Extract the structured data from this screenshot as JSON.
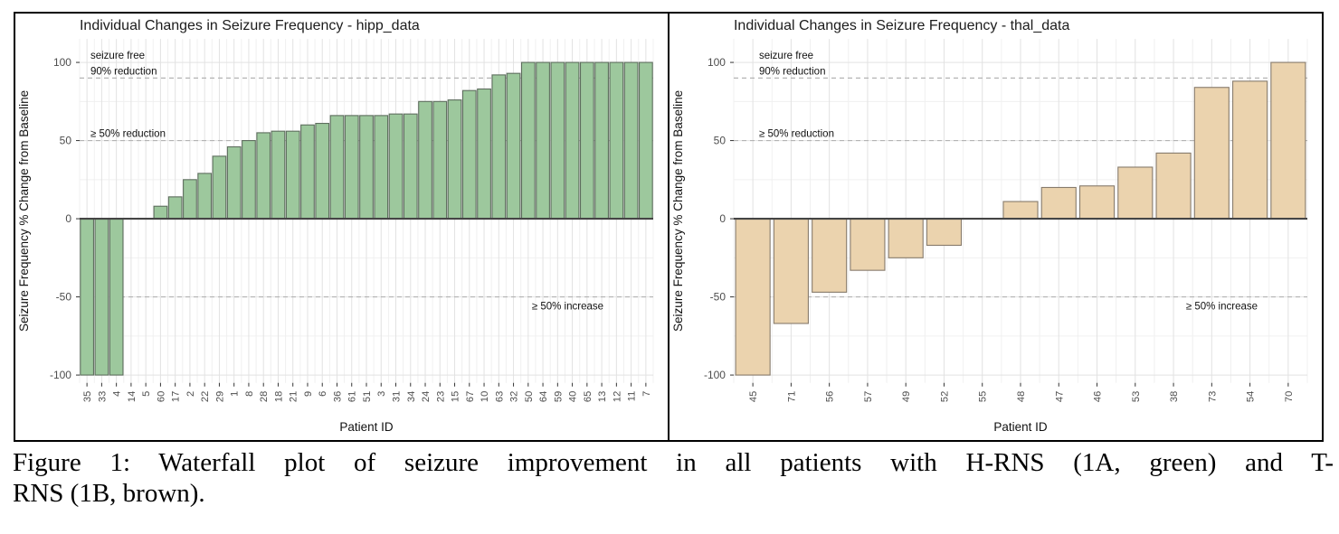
{
  "figure": {
    "caption_line1": "Figure 1: Waterfall plot of seizure improvement in all patients with H-RNS (1A, green) and T-",
    "caption_line2": "RNS (1B, brown)."
  },
  "chart_data": [
    {
      "id": "1A",
      "type": "bar",
      "title": "Individual Changes in Seizure Frequency - hipp_data",
      "xlabel": "Patient ID",
      "ylabel": "Seizure Frequency % Change from Baseline",
      "ylim": [
        -105,
        115
      ],
      "yticks": [
        100,
        50,
        0,
        -50,
        -100
      ],
      "grid": true,
      "legend": "none",
      "bar_fill": "#9dc89d",
      "bar_stroke": "#5e6e5e",
      "ann_x_offset": 12,
      "categories": [
        "35",
        "33",
        "4",
        "14",
        "5",
        "60",
        "17",
        "2",
        "22",
        "29",
        "1",
        "8",
        "28",
        "18",
        "21",
        "9",
        "6",
        "36",
        "61",
        "51",
        "3",
        "31",
        "34",
        "24",
        "23",
        "15",
        "67",
        "10",
        "63",
        "32",
        "50",
        "64",
        "59",
        "40",
        "65",
        "13",
        "12",
        "11",
        "7"
      ],
      "values": [
        -100,
        -100,
        -100,
        0,
        0,
        8,
        14,
        25,
        29,
        40,
        46,
        50,
        55,
        56,
        56,
        60,
        61,
        66,
        66,
        66,
        66,
        67,
        67,
        75,
        75,
        76,
        82,
        83,
        92,
        93,
        100,
        100,
        100,
        100,
        100,
        100,
        100,
        100,
        100
      ],
      "annotations": [
        {
          "label": "seizure free",
          "y": 100,
          "align": "left",
          "line": "none",
          "dy": -4
        },
        {
          "label": "90% reduction",
          "y": 90,
          "align": "left",
          "line": "dashed",
          "dy": -4
        },
        {
          "label": "≥ 50% reduction",
          "y": 50,
          "align": "left",
          "line": "dashed",
          "dy": -4
        },
        {
          "label": "≥ 50% increase",
          "y": -50,
          "align": "right",
          "line": "dashed",
          "dy": 14
        }
      ]
    },
    {
      "id": "1B",
      "type": "bar",
      "title": "Individual Changes in Seizure Frequency - thal_data",
      "xlabel": "Patient ID",
      "ylabel": "Seizure Frequency % Change from Baseline",
      "ylim": [
        -105,
        115
      ],
      "yticks": [
        100,
        50,
        0,
        -50,
        -100
      ],
      "grid": true,
      "legend": "none",
      "bar_fill": "#ebd3ae",
      "bar_stroke": "#877b6c",
      "ann_x_offset": 28,
      "categories": [
        "45",
        "71",
        "56",
        "57",
        "49",
        "52",
        "55",
        "48",
        "47",
        "46",
        "53",
        "38",
        "73",
        "54",
        "70"
      ],
      "values": [
        -100,
        -67,
        -47,
        -33,
        -25,
        -17,
        0,
        11,
        20,
        21,
        33,
        42,
        84,
        88,
        100
      ],
      "annotations": [
        {
          "label": "seizure free",
          "y": 100,
          "align": "left",
          "line": "none",
          "dy": -4
        },
        {
          "label": "90% reduction",
          "y": 90,
          "align": "left",
          "line": "dashed",
          "dy": -4
        },
        {
          "label": "≥ 50% reduction",
          "y": 50,
          "align": "left",
          "line": "dashed",
          "dy": -4
        },
        {
          "label": "≥ 50% increase",
          "y": -50,
          "align": "right",
          "line": "dashed",
          "dy": 14
        }
      ]
    }
  ],
  "style": {
    "grid_major": "#e2e2e2",
    "grid_minor": "#f0f0f0",
    "dashed_line": "#b4b4b4",
    "zero_line": "#454545",
    "tick_text": "#4d4d4d",
    "title_text": "#1c1c1c",
    "annotation_text": "#111111"
  }
}
